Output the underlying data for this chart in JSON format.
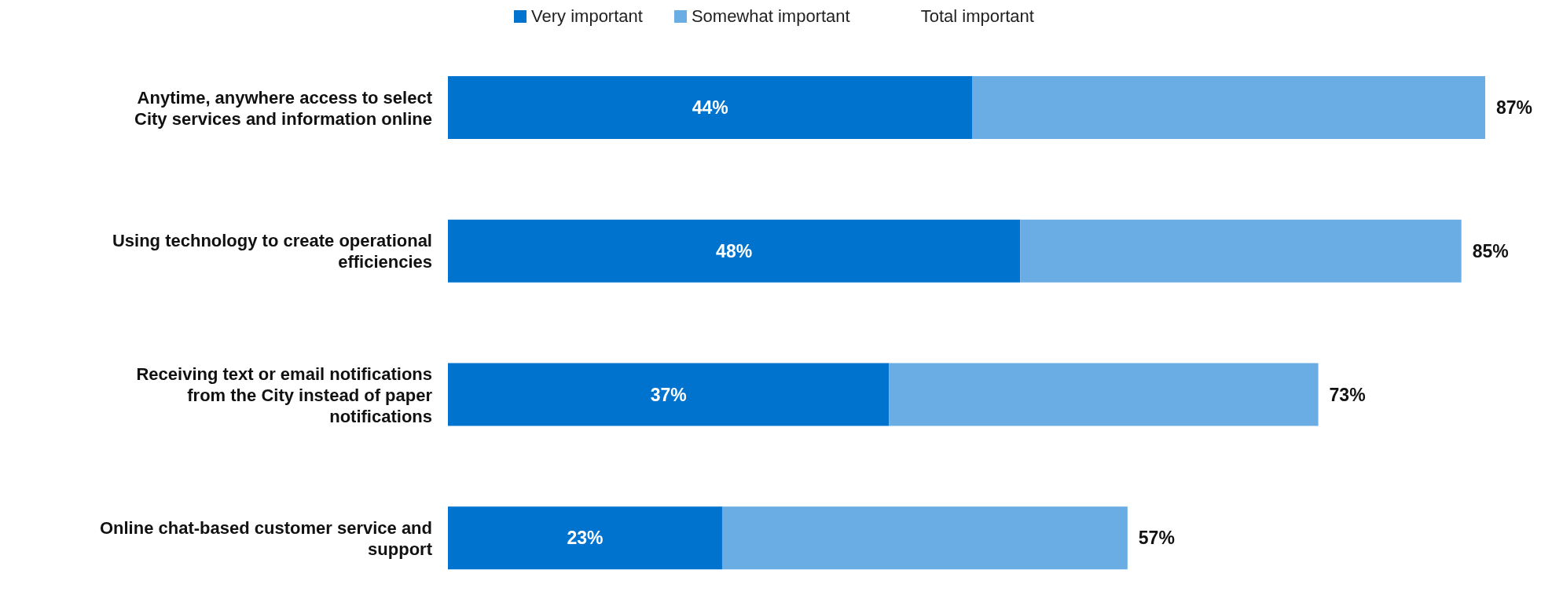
{
  "chart_data": {
    "type": "bar",
    "orientation": "horizontal",
    "stacked": true,
    "legend": "top",
    "categories": [
      "Anytime, anywhere access to select City services and information online",
      "Using technology to create operational efficiencies",
      "Receiving text or email notifications from the City instead of paper notifications",
      "Online chat-based customer service and support"
    ],
    "series": [
      {
        "name": "Very important",
        "color": "#0073cf",
        "values": [
          44,
          48,
          37,
          23
        ],
        "value_labels": [
          "44%",
          "48%",
          "37%",
          "23%"
        ]
      },
      {
        "name": "Somewhat important",
        "color": "#69ade4",
        "values": [
          43,
          37,
          36,
          34
        ]
      }
    ],
    "annotations": [
      "Total important"
    ],
    "totals": [
      "87%",
      "85%",
      "73%",
      "57%"
    ]
  }
}
